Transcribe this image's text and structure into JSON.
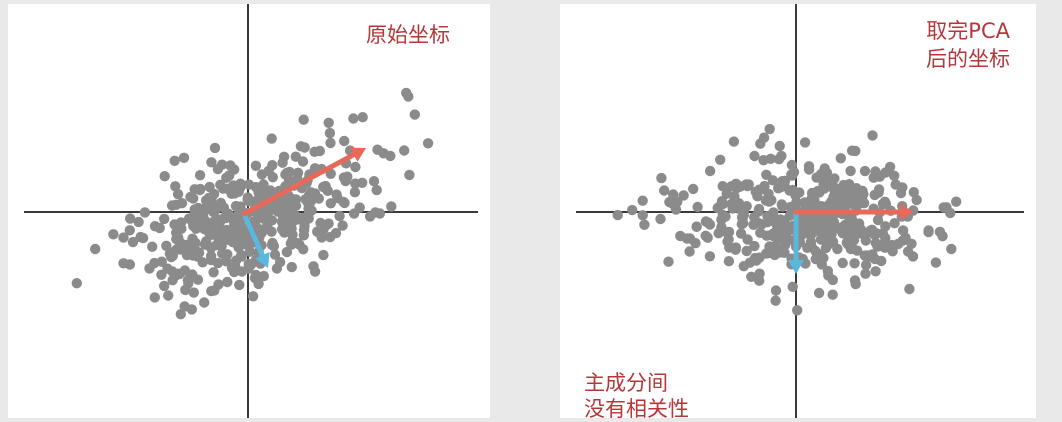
{
  "labels": {
    "left_title": "原始坐标",
    "right_title_line1": "取完PCA",
    "right_title_line2": "后的坐标",
    "right_note_line1": "主成分间",
    "right_note_line2": "没有相关性"
  },
  "colors": {
    "point": "#8b8b8b",
    "axis": "#3a3a3a",
    "principal_vector": "#e8685a",
    "secondary_vector": "#5ab7de",
    "label": "#b5373a"
  }
}
